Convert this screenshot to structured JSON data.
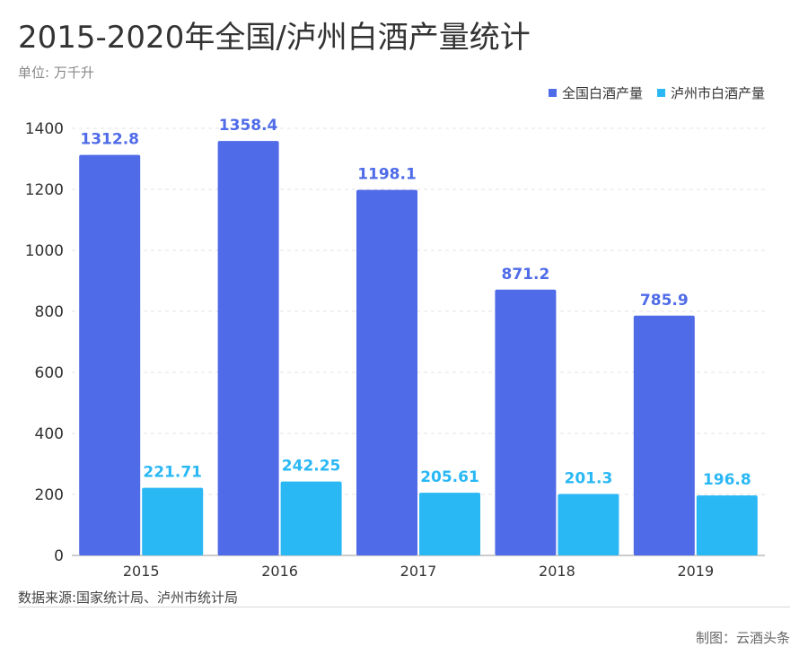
{
  "chart_data": {
    "type": "bar",
    "title": "2015-2020年全国/泸州白酒产量统计",
    "unit": "单位: 万千升",
    "categories": [
      "2015",
      "2016",
      "2017",
      "2018",
      "2019"
    ],
    "series": [
      {
        "name": "全国白酒产量",
        "color": "#4f6be8",
        "label_color": "#4f6be8",
        "values": [
          1312.8,
          1358.4,
          1198.1,
          871.2,
          785.9
        ],
        "labels": [
          "1312.8",
          "1358.4",
          "1198.1",
          "871.2",
          "785.9"
        ]
      },
      {
        "name": "泸州市白酒产量",
        "color": "#2ab8f5",
        "label_color": "#2ab8f5",
        "values": [
          221.71,
          242.25,
          205.61,
          201.3,
          196.8
        ],
        "labels": [
          "221.71",
          "242.25",
          "205.61",
          "201.3",
          "196.8"
        ]
      }
    ],
    "y_ticks": [
      0,
      200,
      400,
      600,
      800,
      1000,
      1200,
      1400
    ],
    "ylim": [
      0,
      1400
    ],
    "grid": true,
    "legend": "top-right"
  },
  "source": "数据来源:国家统计局、泸州市统计局",
  "credit": "制图：云酒头条"
}
